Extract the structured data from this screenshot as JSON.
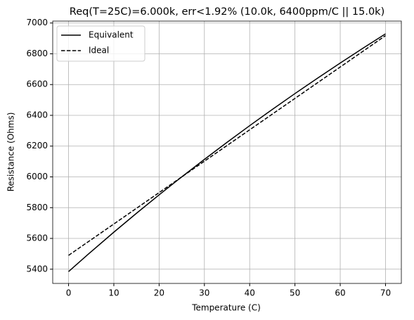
{
  "chart_data": {
    "type": "line",
    "title": "Req(T=25C)=6.000k, err<1.92% (10.0k, 6400ppm/C || 15.0k)",
    "x_label": "Temperature (C)",
    "y_label": "Resistance (Ohms)",
    "x": [
      0,
      5,
      10,
      15,
      20,
      25,
      30,
      35,
      40,
      45,
      50,
      55,
      60,
      65,
      70
    ],
    "series": [
      {
        "name": "Equivalent",
        "color": "#000000",
        "linestyle": "solid",
        "values": [
          5384.6,
          5514.3,
          5640.6,
          5763.5,
          5883.3,
          6000,
          6113.7,
          6224.6,
          6332.8,
          6438.4,
          6541.4,
          6641.9,
          6740.1,
          6836.0,
          6929.7
        ]
      },
      {
        "name": "Ideal",
        "color": "#000000",
        "linestyle": "dashed",
        "values": [
          5490,
          5592,
          5694,
          5796,
          5898,
          6000,
          6102,
          6204,
          6306,
          6408,
          6510,
          6612,
          6714,
          6816,
          6918
        ]
      }
    ],
    "xlim": [
      -3.5,
      73.5
    ],
    "xticks": [
      0,
      10,
      20,
      30,
      40,
      50,
      60,
      70
    ],
    "ylim": [
      5307.5,
      7012.5
    ],
    "yticks": [
      5400,
      5600,
      5800,
      6000,
      6200,
      6400,
      6600,
      6800,
      7000
    ],
    "grid": true,
    "legend": "upper-left"
  }
}
